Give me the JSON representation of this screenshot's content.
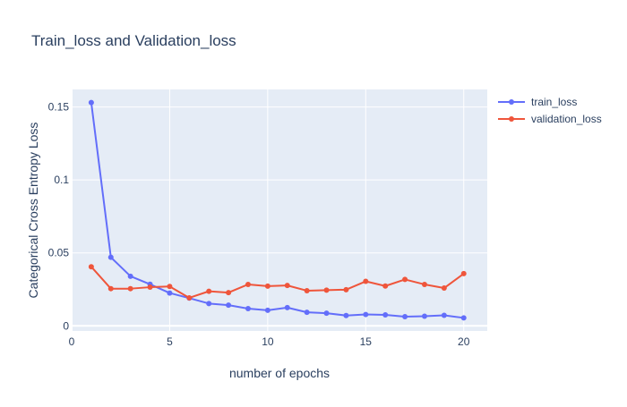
{
  "chart_data": {
    "type": "line",
    "title": "Train_loss and Validation_loss",
    "xlabel": "number of epochs",
    "ylabel": "Categorical Cross Entropy Loss",
    "xlim": [
      0,
      21.2
    ],
    "ylim": [
      -0.0035,
      0.162
    ],
    "xticks": [
      0,
      5,
      10,
      15,
      20
    ],
    "yticks": [
      0,
      0.05,
      0.1,
      0.15
    ],
    "ytick_labels": [
      "0",
      "0.05",
      "0.1",
      "0.15"
    ],
    "grid": true,
    "legend_position": "top-right",
    "x": [
      1,
      2,
      3,
      4,
      5,
      6,
      7,
      8,
      9,
      10,
      11,
      12,
      13,
      14,
      15,
      16,
      17,
      18,
      19,
      20
    ],
    "series": [
      {
        "name": "train_loss",
        "color": "#636efa",
        "values": [
          0.153,
          0.047,
          0.034,
          0.0285,
          0.0225,
          0.019,
          0.0153,
          0.0142,
          0.0118,
          0.0107,
          0.0125,
          0.0093,
          0.0087,
          0.0071,
          0.0078,
          0.0075,
          0.0063,
          0.0066,
          0.0072,
          0.0055
        ]
      },
      {
        "name": "validation_loss",
        "color": "#ef553b",
        "values": [
          0.0405,
          0.0255,
          0.0255,
          0.0265,
          0.027,
          0.0192,
          0.0237,
          0.0228,
          0.0284,
          0.0272,
          0.0277,
          0.0241,
          0.0245,
          0.0248,
          0.0305,
          0.0273,
          0.0318,
          0.0284,
          0.0259,
          0.0358
        ]
      }
    ]
  },
  "colors": {
    "plot_background": "#e5ecf6",
    "grid": "#ffffff",
    "text": "#2a3f5f"
  }
}
